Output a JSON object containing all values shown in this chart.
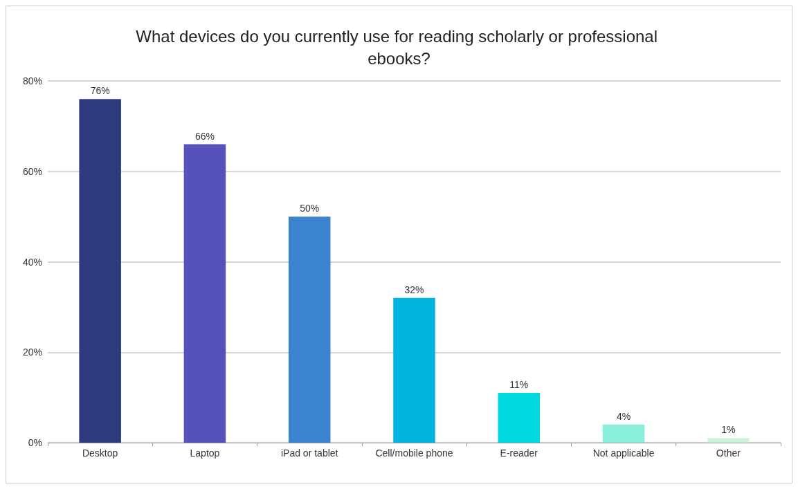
{
  "chart_data": {
    "type": "bar",
    "title": "What devices do you currently use for reading scholarly or professional ebooks?",
    "categories": [
      "Desktop",
      "Laptop",
      "iPad or tablet",
      "Cell/mobile phone",
      "E-reader",
      "Not applicable",
      "Other"
    ],
    "values": [
      76,
      66,
      50,
      32,
      11,
      4,
      1
    ],
    "colors": [
      "#2e3a7e",
      "#5651bb",
      "#3b82cf",
      "#00b4e2",
      "#00d8e0",
      "#8aeedd",
      "#c8f5dc"
    ],
    "value_labels": [
      "76%",
      "66%",
      "50%",
      "32%",
      "11%",
      "4%",
      "1%"
    ],
    "ylim": [
      0,
      80
    ],
    "yticks": [
      {
        "value": 0,
        "label": "0%"
      },
      {
        "value": 20,
        "label": "20%"
      },
      {
        "value": 40,
        "label": "40%"
      },
      {
        "value": 60,
        "label": "60%"
      },
      {
        "value": 80,
        "label": "80%"
      }
    ],
    "grid": "y"
  }
}
